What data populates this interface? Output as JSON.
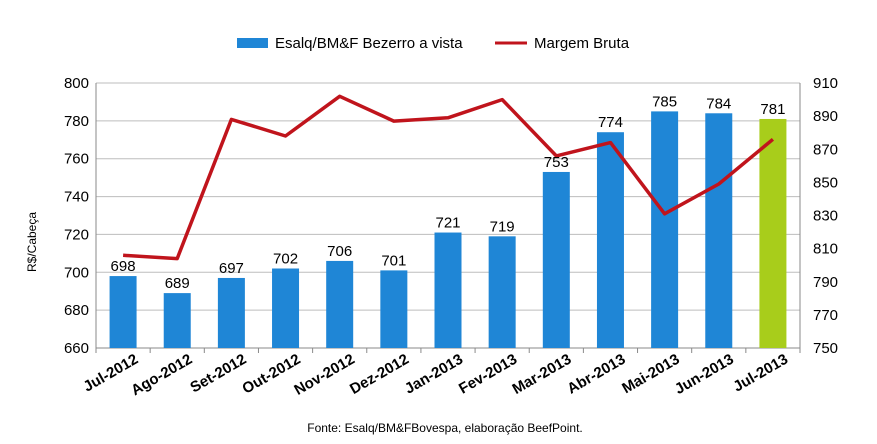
{
  "chart_data": {
    "type": "bar",
    "categories": [
      "Jul-2012",
      "Ago-2012",
      "Set-2012",
      "Out-2012",
      "Nov-2012",
      "Dez-2012",
      "Jan-2013",
      "Fev-2013",
      "Mar-2013",
      "Abr-2013",
      "Mai-2013",
      "Jun-2013",
      "Jul-2013"
    ],
    "series": [
      {
        "name": "Esalq/BM&F Bezerro a vista",
        "type": "bar",
        "axis": "left",
        "color": "#1f86d6",
        "highlight_color": "#a8cd1b",
        "highlight_index": 12,
        "values": [
          698,
          689,
          697,
          702,
          706,
          701,
          721,
          719,
          753,
          774,
          785,
          784,
          781
        ]
      },
      {
        "name": "Margem Bruta",
        "type": "line",
        "axis": "right",
        "color": "#c0141c",
        "values": [
          806,
          804,
          888,
          878,
          902,
          887,
          889,
          900,
          866,
          874,
          831,
          849,
          876
        ]
      }
    ],
    "data_labels": [
      "698",
      "689",
      "697",
      "702",
      "706",
      "701",
      "721",
      "719",
      "753",
      "774",
      "785",
      "784",
      "781"
    ],
    "ylabel": "R$/Cabeça",
    "ylim": [
      660,
      800
    ],
    "yticks": [
      660,
      680,
      700,
      720,
      740,
      760,
      780,
      800
    ],
    "y2lim": [
      750,
      910
    ],
    "y2ticks": [
      750,
      770,
      790,
      810,
      830,
      850,
      870,
      890,
      910
    ],
    "grid": true,
    "legend_position": "top"
  },
  "source_note": "Fonte:  Esalq/BM&FBovespa,  elaboração  BeefPoint."
}
